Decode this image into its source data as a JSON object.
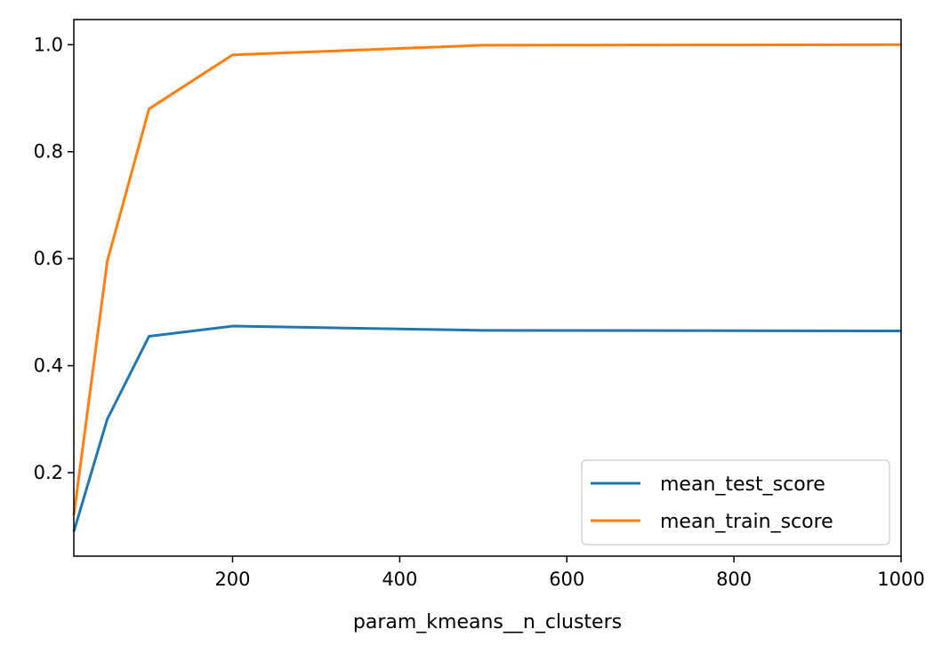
{
  "chart_data": {
    "type": "line",
    "title": "",
    "xlabel": "param_kmeans__n_clusters",
    "ylabel": "",
    "xlim": [
      10,
      1000
    ],
    "ylim": [
      0.044,
      1.047
    ],
    "xticks": [
      200,
      400,
      600,
      800,
      1000
    ],
    "yticks": [
      0.2,
      0.4,
      0.6,
      0.8,
      1.0
    ],
    "xtick_labels": [
      "200",
      "400",
      "600",
      "800",
      "1000"
    ],
    "ytick_labels": [
      "0.2",
      "0.4",
      "0.6",
      "0.8",
      "1.0"
    ],
    "grid": false,
    "legend": "lower-right",
    "x": [
      10,
      50,
      100,
      200,
      500,
      1000
    ],
    "series": [
      {
        "name": "mean_test_score",
        "color": "#1f77b4",
        "values": [
          0.09,
          0.3,
          0.455,
          0.474,
          0.466,
          0.465
        ]
      },
      {
        "name": "mean_train_score",
        "color": "#ff7f0e",
        "values": [
          0.12,
          0.595,
          0.88,
          0.981,
          0.999,
          1.0
        ]
      }
    ]
  }
}
